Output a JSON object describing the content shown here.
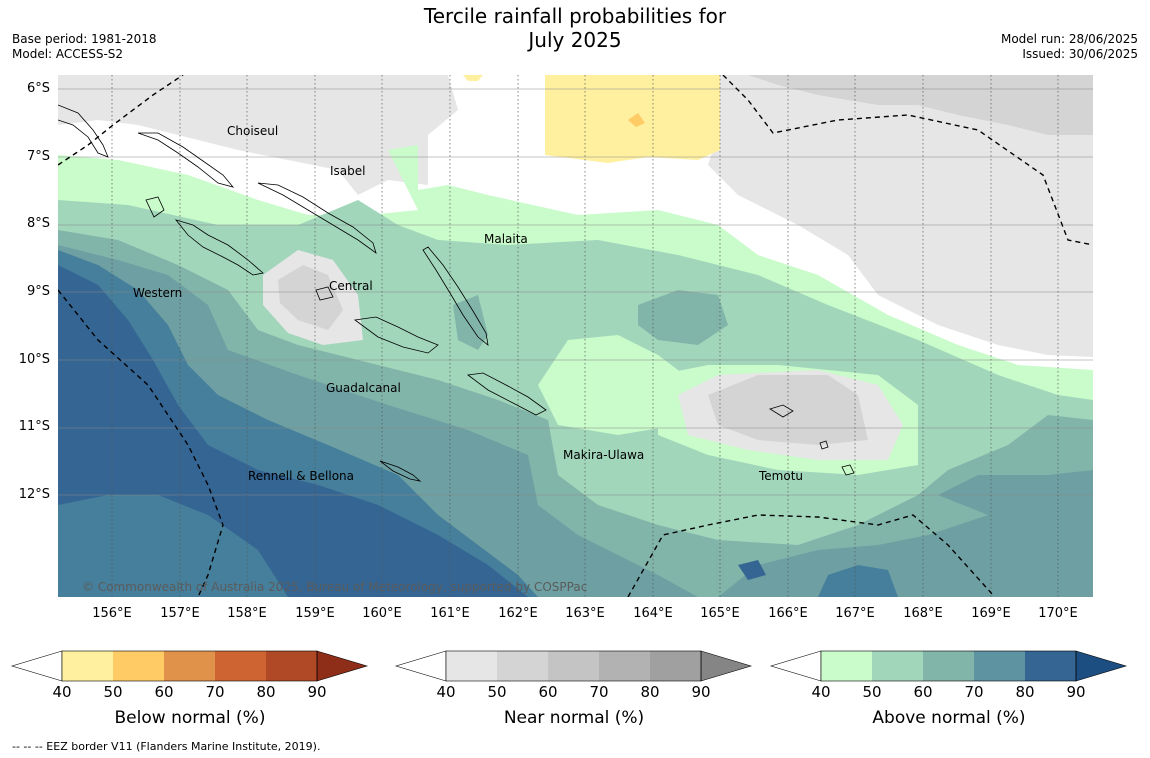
{
  "title_line1": "Tercile rainfall probabilities for",
  "title_line2": "July 2025",
  "meta_left": {
    "base_period": "Base period: 1981-2018",
    "model": "Model: ACCESS-S2"
  },
  "meta_right": {
    "model_run": "Model run: 28/06/2025",
    "issued": "Issued: 30/06/2025"
  },
  "lat_labels": [
    "6°S",
    "7°S",
    "8°S",
    "9°S",
    "10°S",
    "11°S",
    "12°S"
  ],
  "lon_labels": [
    "156°E",
    "157°E",
    "158°E",
    "159°E",
    "160°E",
    "161°E",
    "162°E",
    "163°E",
    "164°E",
    "165°E",
    "166°E",
    "167°E",
    "168°E",
    "169°E",
    "170°E"
  ],
  "places": {
    "choiseul": "Choiseul",
    "isabel": "Isabel",
    "malaita": "Malaita",
    "central": "Central",
    "western": "Western",
    "guadalcanal": "Guadalcanal",
    "makira": "Makira-Ulawa",
    "rennell": "Rennell & Bellona",
    "temotu": "Temotu"
  },
  "copyright": "© Commonwealth of Australia 2025, Bureau of Meteorology, supported by COSPPac",
  "colorbars": [
    {
      "title": "Below normal (%)",
      "ticks": [
        "40",
        "50",
        "60",
        "70",
        "80",
        "90"
      ],
      "colors": [
        "#ffffff",
        "#fff0a0",
        "#fecb65",
        "#e0924a",
        "#cd6432",
        "#b04a26",
        "#8e2d18"
      ]
    },
    {
      "title": "Near normal (%)",
      "ticks": [
        "40",
        "50",
        "60",
        "70",
        "80",
        "90"
      ],
      "colors": [
        "#ffffff",
        "#e6e6e6",
        "#d4d4d4",
        "#c4c4c4",
        "#b2b2b2",
        "#a0a0a0",
        "#858585"
      ]
    },
    {
      "title": "Above normal (%)",
      "ticks": [
        "40",
        "50",
        "60",
        "70",
        "80",
        "90"
      ],
      "colors": [
        "#ffffff",
        "#c9fcca",
        "#a1d6bb",
        "#82b5aa",
        "#5e93a2",
        "#346593",
        "#1d4e82"
      ]
    }
  ],
  "footnote": "--  --  -- EEZ border V11 (Flanders Marine Institute, 2019).",
  "map_colors": {
    "above_40": "#c9fcca",
    "above_50": "#a1d6bb",
    "above_60": "#82b5aa",
    "above_70": "#6ea0a3",
    "above_80": "#467f9b",
    "above_90": "#346593",
    "near_40": "#e6e6e6",
    "near_50": "#d4d4d4",
    "below_40": "#fff0a0",
    "below_50": "#fecb65"
  }
}
